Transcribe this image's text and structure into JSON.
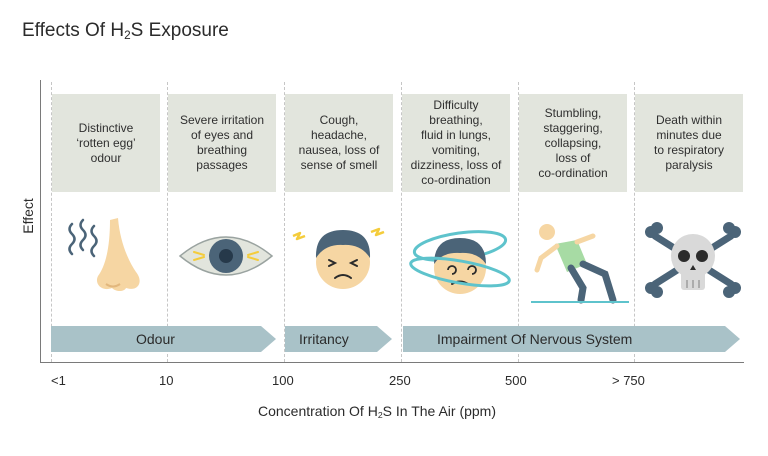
{
  "title": {
    "prefix": "Effects Of H",
    "sub": "2",
    "suffix": "S Exposure"
  },
  "y_axis_label": "Effect",
  "x_axis_label": {
    "prefix": "Concentration Of H",
    "sub": "2",
    "suffix": "S In The Air (ppm)"
  },
  "ticks": [
    "<1",
    "10",
    "100",
    "250",
    "500",
    "> 750"
  ],
  "effects": [
    "Distinctive\n‘rotten egg’\nodour",
    "Severe irritation\nof eyes and\nbreathing\npassages",
    "Cough,\nheadache,\nnausea, loss of\nsense of smell",
    "Difficulty\nbreathing,\nfluid in lungs,\nvomiting,\ndizziness, loss of\nco-ordination",
    "Stumbling,\nstaggering,\ncollapsing,\nloss of\nco-ordination",
    "Death within\nminutes due\nto respiratory\nparalysis"
  ],
  "categories": [
    "Odour",
    "Irritancy",
    "Impairment Of Nervous System"
  ],
  "icons": [
    "nose-icon",
    "eye-icon",
    "irritated-face-icon",
    "dizzy-face-icon",
    "falling-person-icon",
    "skull-crossbones-icon"
  ],
  "colors": {
    "box": "#e2e5dd",
    "arrow": "#a9c2c8",
    "hair": "#4b6478",
    "skin": "#f6d6a3",
    "teal": "#5ec3cc",
    "axis": "#7a7a7a"
  }
}
